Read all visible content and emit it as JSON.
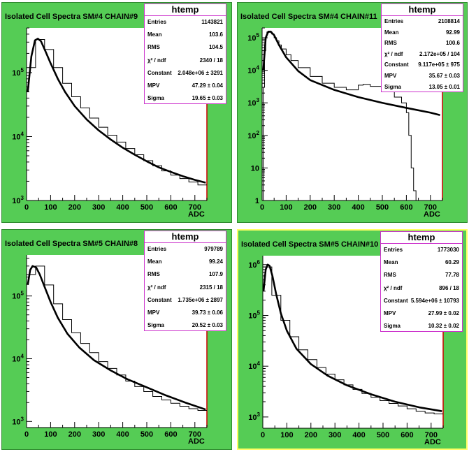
{
  "panels": [
    {
      "title": "Isolated Cell Spectra SM#4 CHAIN#9",
      "stats_title": "htemp",
      "stats": [
        {
          "k": "Entries",
          "v": "1143821"
        },
        {
          "k": "Mean",
          "v": "103.6"
        },
        {
          "k": "RMS",
          "v": "104.5"
        },
        {
          "k": "χ² / ndf",
          "v": "2340 / 18"
        },
        {
          "k": "Constant",
          "v": "2.048e+06 ± 3291"
        },
        {
          "k": "MPV",
          "v": "47.29 ± 0.04"
        },
        {
          "k": "Sigma",
          "v": "19.65 ± 0.03"
        }
      ]
    },
    {
      "title": "Isolated Cell Spectra SM#4 CHAIN#11",
      "stats_title": "htemp",
      "stats": [
        {
          "k": "Entries",
          "v": "2108814"
        },
        {
          "k": "Mean",
          "v": "92.99"
        },
        {
          "k": "RMS",
          "v": "100.6"
        },
        {
          "k": "χ² / ndf",
          "v": "2.172e+05 / 104"
        },
        {
          "k": "Constant",
          "v": "9.117e+05 ± 975"
        },
        {
          "k": "MPV",
          "v": "35.67 ± 0.03"
        },
        {
          "k": "Sigma",
          "v": "13.05 ± 0.01"
        }
      ]
    },
    {
      "title": "Isolated Cell Spectra SM#5 CHAIN#8",
      "stats_title": "htemp",
      "stats": [
        {
          "k": "Entries",
          "v": "979789"
        },
        {
          "k": "Mean",
          "v": "99.24"
        },
        {
          "k": "RMS",
          "v": "107.9"
        },
        {
          "k": "χ² / ndf",
          "v": "2315 / 18"
        },
        {
          "k": "Constant",
          "v": "1.735e+06 ± 2897"
        },
        {
          "k": "MPV",
          "v": "39.73 ± 0.06"
        },
        {
          "k": "Sigma",
          "v": "20.52 ± 0.03"
        }
      ]
    },
    {
      "title": "Isolated Cell Spectra SM#5 CHAIN#10",
      "stats_title": "htemp",
      "stats": [
        {
          "k": "Entries",
          "v": "1773030"
        },
        {
          "k": "Mean",
          "v": "60.29"
        },
        {
          "k": "RMS",
          "v": "77.78"
        },
        {
          "k": "χ² / ndf",
          "v": "896 / 18"
        },
        {
          "k": "Constant",
          "v": "5.594e+06 ± 10793"
        },
        {
          "k": "MPV",
          "v": "27.99 ± 0.02"
        },
        {
          "k": "Sigma",
          "v": "10.32 ± 0.02"
        }
      ]
    }
  ],
  "chart_data": [
    {
      "type": "line",
      "title": "Isolated Cell Spectra SM#4 CHAIN#9",
      "xlabel": "ADC",
      "ylabel": "",
      "xlim": [
        0,
        750
      ],
      "ylim": [
        1000,
        500000
      ],
      "y_scale": "log",
      "x_ticks": [
        0,
        100,
        200,
        300,
        400,
        500,
        600,
        700
      ],
      "y_tick_labels": [
        "10^3",
        "10^4",
        "10^5"
      ],
      "colors": {
        "pad": "#55cc55",
        "frame": "#ffffff",
        "line": "#000000",
        "border": "#cc0000"
      },
      "series": [
        {
          "style": "histogram",
          "bin_width": 37.5,
          "x": [
            0,
            37.5,
            75,
            112.5,
            150,
            187.5,
            225,
            262.5,
            300,
            337.5,
            375,
            412.5,
            450,
            487.5,
            525,
            562.5,
            600,
            637.5,
            675,
            712.5
          ],
          "y": [
            120000,
            330000,
            230000,
            120000,
            68000,
            42000,
            28000,
            19500,
            14000,
            10500,
            8200,
            6500,
            5200,
            4200,
            3500,
            2900,
            2500,
            2200,
            1950,
            1750
          ]
        },
        {
          "style": "fit",
          "x": [
            5,
            20,
            35,
            47,
            60,
            80,
            100,
            130,
            160,
            200,
            250,
            300,
            350,
            400,
            450,
            500,
            550,
            600,
            650,
            700,
            745
          ],
          "y": [
            50000,
            180000,
            320000,
            340000,
            310000,
            210000,
            140000,
            80000,
            50000,
            30000,
            18500,
            12500,
            9000,
            6700,
            5200,
            4100,
            3300,
            2800,
            2400,
            2100,
            1900
          ]
        }
      ]
    },
    {
      "type": "line",
      "title": "Isolated Cell Spectra SM#4 CHAIN#11",
      "xlabel": "ADC",
      "ylabel": "",
      "xlim": [
        0,
        750
      ],
      "ylim": [
        1,
        200000
      ],
      "y_scale": "log",
      "x_ticks": [
        0,
        100,
        200,
        300,
        400,
        500,
        600,
        700
      ],
      "y_tick_labels": [
        "1",
        "10",
        "10^2",
        "10^3",
        "10^4",
        "10^5"
      ],
      "colors": {
        "pad": "#55cc55",
        "frame": "#ffffff",
        "line": "#000000",
        "border": "#cc0000"
      },
      "series": [
        {
          "style": "histogram",
          "x": [
            0,
            5,
            10,
            15,
            20,
            25,
            30,
            40,
            50,
            60,
            70,
            80,
            100,
            120,
            150,
            200,
            250,
            300,
            350,
            400,
            420,
            450,
            500,
            550,
            580,
            600,
            610,
            620,
            630,
            640,
            650,
            660
          ],
          "y": [
            1,
            3000,
            40000,
            110000,
            150000,
            160000,
            155000,
            130000,
            100000,
            80000,
            60000,
            45000,
            30000,
            20000,
            12000,
            6500,
            4000,
            3000,
            2500,
            3500,
            3700,
            3200,
            2200,
            1500,
            1000,
            500,
            100,
            10,
            2,
            1,
            1,
            1
          ]
        },
        {
          "style": "fit",
          "x": [
            5,
            15,
            25,
            35,
            50,
            70,
            100,
            150,
            200,
            300,
            400,
            500,
            600,
            700,
            740
          ],
          "y": [
            10000,
            100000,
            150000,
            155000,
            120000,
            60000,
            25000,
            9500,
            5000,
            2500,
            1500,
            1000,
            700,
            500,
            420
          ]
        }
      ]
    },
    {
      "type": "line",
      "title": "Isolated Cell Spectra SM#5 CHAIN#8",
      "xlabel": "ADC",
      "ylabel": "",
      "xlim": [
        0,
        750
      ],
      "ylim": [
        800,
        450000
      ],
      "y_scale": "log",
      "x_ticks": [
        0,
        100,
        200,
        300,
        400,
        500,
        600,
        700
      ],
      "y_tick_labels": [
        "10^3",
        "10^4",
        "10^5"
      ],
      "colors": {
        "pad": "#55cc55",
        "frame": "#ffffff",
        "line": "#000000",
        "border": "#cc0000"
      },
      "series": [
        {
          "style": "histogram",
          "bin_width": 37.5,
          "x": [
            0,
            37.5,
            75,
            112.5,
            150,
            187.5,
            225,
            262.5,
            300,
            337.5,
            375,
            412.5,
            450,
            487.5,
            525,
            562.5,
            600,
            637.5,
            675,
            712.5
          ],
          "y": [
            220000,
            300000,
            150000,
            75000,
            42000,
            26000,
            17500,
            12500,
            9000,
            7000,
            5500,
            4400,
            3600,
            3000,
            2500,
            2200,
            1950,
            1750,
            1600,
            1500
          ]
        },
        {
          "style": "fit",
          "x": [
            5,
            15,
            25,
            40,
            55,
            75,
            100,
            130,
            170,
            220,
            280,
            350,
            420,
            500,
            580,
            660,
            745
          ],
          "y": [
            150000,
            260000,
            300000,
            285000,
            220000,
            140000,
            80000,
            45000,
            25000,
            15000,
            9500,
            6500,
            4700,
            3500,
            2600,
            2000,
            1550
          ]
        }
      ]
    },
    {
      "type": "line",
      "title": "Isolated Cell Spectra SM#5 CHAIN#10",
      "xlabel": "ADC",
      "ylabel": "",
      "xlim": [
        0,
        750
      ],
      "ylim": [
        600,
        1500000
      ],
      "y_scale": "log",
      "x_ticks": [
        0,
        100,
        200,
        300,
        400,
        500,
        600,
        700
      ],
      "y_tick_labels": [
        "10^3",
        "10^4",
        "10^5",
        "10^6"
      ],
      "colors": {
        "pad": "#55cc55",
        "frame": "#ffffff",
        "line": "#000000",
        "border": "#cc0000"
      },
      "series": [
        {
          "style": "histogram",
          "bin_width": 37.5,
          "x": [
            0,
            37.5,
            75,
            112.5,
            150,
            187.5,
            225,
            262.5,
            300,
            337.5,
            375,
            412.5,
            450,
            487.5,
            525,
            562.5,
            600,
            637.5,
            675,
            712.5
          ],
          "y": [
            900000,
            250000,
            80000,
            38000,
            21000,
            13500,
            9400,
            7000,
            5400,
            4300,
            3500,
            2900,
            2450,
            2100,
            1850,
            1650,
            1450,
            1300,
            1200,
            1150
          ]
        },
        {
          "style": "fit",
          "x": [
            3,
            12,
            20,
            28,
            40,
            55,
            75,
            100,
            140,
            200,
            270,
            350,
            450,
            550,
            650,
            745
          ],
          "y": [
            300000,
            800000,
            1000000,
            950000,
            600000,
            270000,
            110000,
            50000,
            22000,
            11000,
            6500,
            4200,
            2800,
            2000,
            1550,
            1300
          ]
        }
      ]
    }
  ]
}
